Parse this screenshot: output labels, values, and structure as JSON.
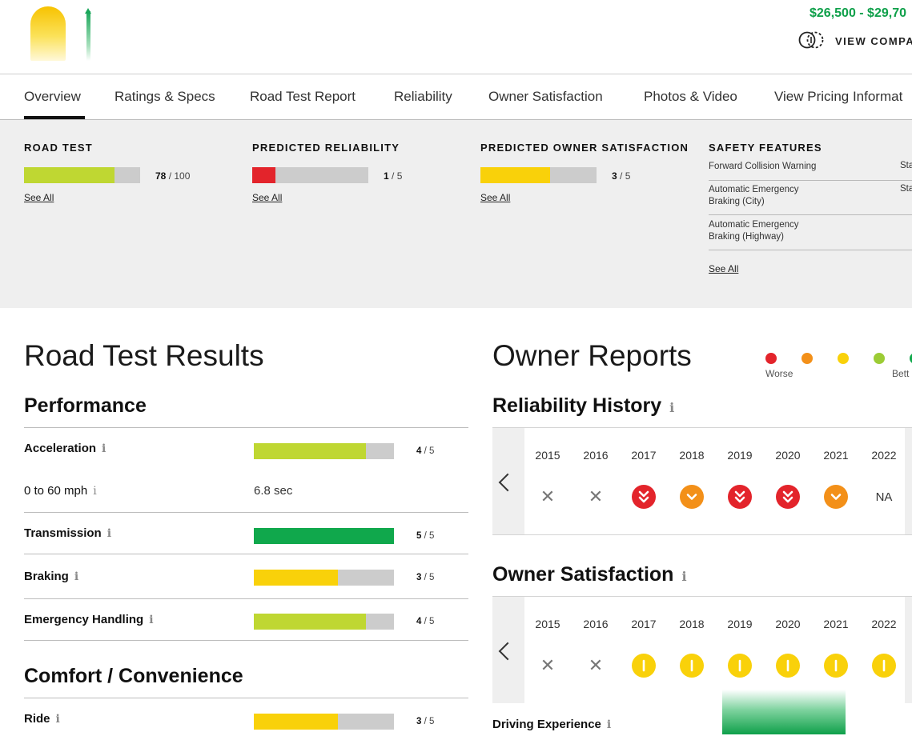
{
  "header": {
    "price_range": "$26,500 - $29,70",
    "compare_label": "VIEW COMPA"
  },
  "nav": {
    "tabs": [
      {
        "label": "Overview"
      },
      {
        "label": "Ratings & Specs"
      },
      {
        "label": "Road Test Report"
      },
      {
        "label": "Reliability"
      },
      {
        "label": "Owner Satisfaction"
      },
      {
        "label": "Photos & Video"
      },
      {
        "label": "View Pricing Informat"
      }
    ],
    "active": "Overview"
  },
  "summary": {
    "road_test": {
      "title": "ROAD TEST",
      "score": "78",
      "max": "/ 100",
      "fraction": 0.78,
      "color": "#bfd732",
      "see_all": "See All"
    },
    "reliability": {
      "title": "PREDICTED RELIABILITY",
      "score": "1",
      "max": "/ 5",
      "fraction": 0.2,
      "color": "#e3242b",
      "see_all": "See All"
    },
    "owner_satisfaction": {
      "title": "PREDICTED OWNER SATISFACTION",
      "score": "3",
      "max": "/ 5",
      "fraction": 0.6,
      "color": "#f9d10a",
      "see_all": "See All"
    },
    "safety": {
      "title": "SAFETY FEATURES",
      "rows": [
        {
          "label": "Forward Collision Warning",
          "value": "Stand"
        },
        {
          "label": "Automatic Emergency Braking (City)",
          "value": "Stand"
        },
        {
          "label": "Automatic Emergency Braking (Highway)",
          "value": ""
        }
      ],
      "see_all": "See All"
    }
  },
  "road_test": {
    "heading": "Road Test Results",
    "performance": {
      "heading": "Performance",
      "rows": [
        {
          "label": "Acceleration",
          "score": "4",
          "max": "/ 5",
          "fraction": 0.8,
          "color": "#bfd732"
        },
        {
          "label": "0 to 60 mph",
          "value": "6.8 sec"
        },
        {
          "label": "Transmission",
          "score": "5",
          "max": "/ 5",
          "fraction": 1.0,
          "color": "#10a84c"
        },
        {
          "label": "Braking",
          "score": "3",
          "max": "/ 5",
          "fraction": 0.6,
          "color": "#f9d10a"
        },
        {
          "label": "Emergency Handling",
          "score": "4",
          "max": "/ 5",
          "fraction": 0.8,
          "color": "#bfd732"
        }
      ]
    },
    "comfort": {
      "heading": "Comfort / Convenience",
      "rows": [
        {
          "label": "Ride",
          "score": "3",
          "max": "/ 5",
          "fraction": 0.6,
          "color": "#f9d10a"
        }
      ]
    }
  },
  "owner_reports": {
    "heading": "Owner Reports",
    "legend": {
      "worse": "Worse",
      "better": "Bett",
      "colors": [
        "#e3242b",
        "#f39019",
        "#f9d10a",
        "#9ccc35",
        "#10a84c"
      ]
    },
    "reliability_history": {
      "heading": "Reliability History",
      "years": [
        "2015",
        "2016",
        "2017",
        "2018",
        "2019",
        "2020",
        "2021",
        "2022"
      ],
      "ratings": [
        "x",
        "x",
        "much-worse",
        "worse",
        "much-worse",
        "much-worse",
        "worse",
        "NA"
      ]
    },
    "owner_satisfaction": {
      "heading": "Owner Satisfaction",
      "years": [
        "2015",
        "2016",
        "2017",
        "2018",
        "2019",
        "2020",
        "2021",
        "2022"
      ],
      "ratings": [
        "x",
        "x",
        "average",
        "average",
        "average",
        "average",
        "average",
        "average"
      ]
    },
    "driving_experience": {
      "label": "Driving Experience"
    }
  }
}
